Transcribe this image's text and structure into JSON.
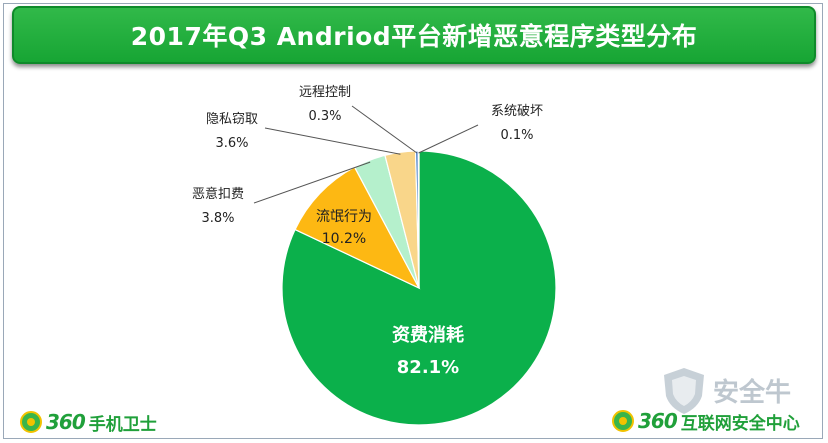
{
  "title": "2017年Q3  Andriod平台新增恶意程序类型分布",
  "chart_data": {
    "type": "pie",
    "title": "2017年Q3  Andriod平台新增恶意程序类型分布",
    "slices": [
      {
        "label": "资费消耗",
        "value": 82.1,
        "value_label": "82.1%",
        "color": "#0bb04b",
        "label_color": "#ffffff"
      },
      {
        "label": "流氓行为",
        "value": 10.2,
        "value_label": "10.2%",
        "color": "#fdb813",
        "label_color": "#222222"
      },
      {
        "label": "恶意扣费",
        "value": 3.8,
        "value_label": "3.8%",
        "color": "#b5f0cc",
        "label_color": "#222222"
      },
      {
        "label": "隐私窃取",
        "value": 3.6,
        "value_label": "3.6%",
        "color": "#f9d68a",
        "label_color": "#222222"
      },
      {
        "label": "远程控制",
        "value": 0.3,
        "value_label": "0.3%",
        "color": "#2e6bbf",
        "label_color": "#222222"
      },
      {
        "label": "系统破坏",
        "value": 0.1,
        "value_label": "0.1%",
        "color": "#7f7f7f",
        "label_color": "#222222"
      }
    ]
  },
  "logos": {
    "left_num": "360",
    "left_text": "手机卫士",
    "right_num": "360",
    "right_text": "互联网安全中心",
    "watermark_text": "安全牛"
  }
}
